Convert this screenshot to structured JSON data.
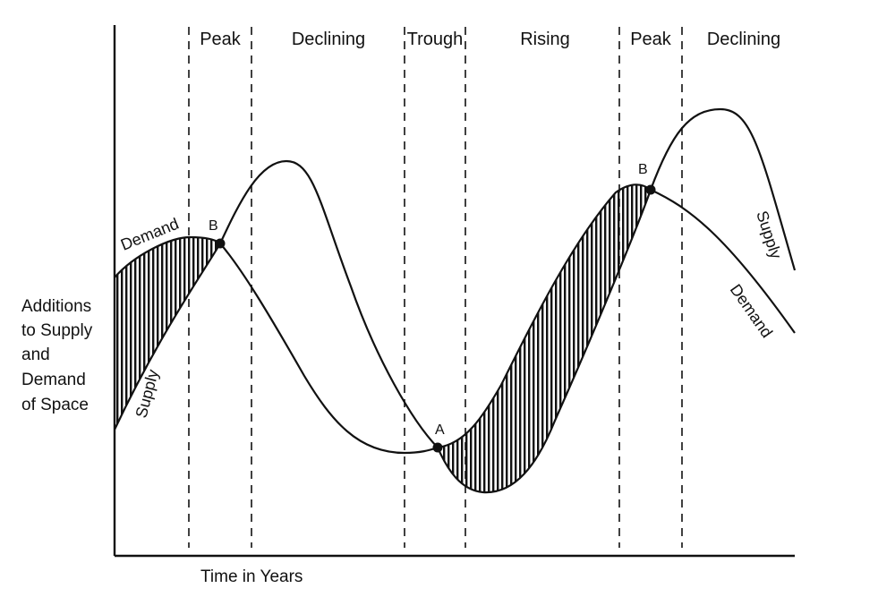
{
  "phases": [
    "Peak",
    "Declining",
    "Trough",
    "Rising",
    "Peak",
    "Declining"
  ],
  "y_axis_label": [
    "Additions",
    "to Supply",
    "and",
    "Demand",
    "of Space"
  ],
  "x_axis_label": "Time in Years",
  "curves": {
    "supply_label": "Supply",
    "demand_label": "Demand"
  },
  "points": {
    "b1": "B",
    "a": "A",
    "b2": "B"
  },
  "colors": {
    "ink": "#111111",
    "background": "#ffffff"
  }
}
